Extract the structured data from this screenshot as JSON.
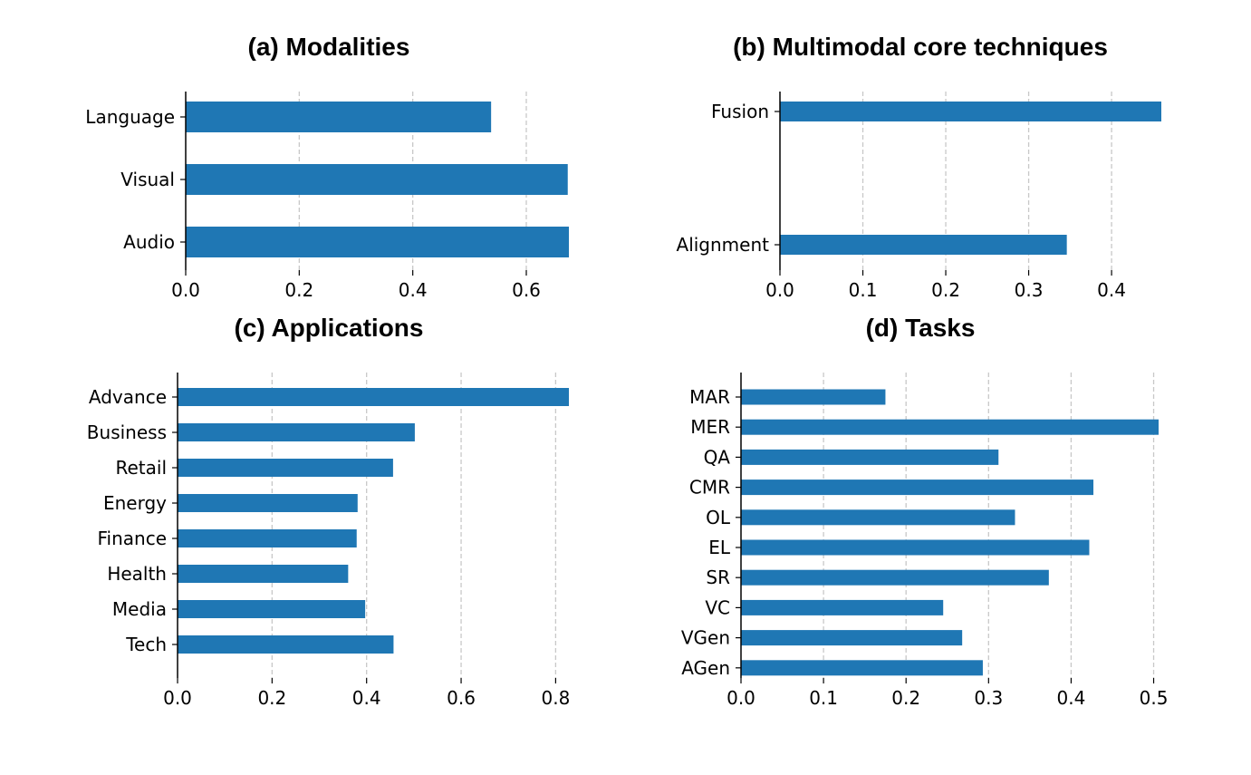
{
  "colors": {
    "bar": "#1f77b4",
    "grid": "#c8c8c8",
    "axis": "#000000"
  },
  "chart_data": [
    {
      "type": "bar",
      "orientation": "horizontal",
      "title": "(a) Modalities",
      "categories": [
        "Language",
        "Visual",
        "Audio"
      ],
      "values": [
        0.538,
        0.673,
        0.675
      ],
      "xlim": [
        0,
        0.675
      ],
      "xticks": [
        0.0,
        0.2,
        0.4,
        0.6
      ],
      "xtick_labels": [
        "0.0",
        "0.2",
        "0.4",
        "0.6"
      ],
      "grid": "x-dashed"
    },
    {
      "type": "bar",
      "orientation": "horizontal",
      "title": "(b) Multimodal core techniques",
      "categories": [
        "Fusion",
        "Alignment"
      ],
      "values": [
        0.46,
        0.346
      ],
      "xlim": [
        0,
        0.46
      ],
      "xticks": [
        0.0,
        0.1,
        0.2,
        0.3,
        0.4
      ],
      "xtick_labels": [
        "0.0",
        "0.1",
        "0.2",
        "0.3",
        "0.4"
      ],
      "grid": "x-dashed"
    },
    {
      "type": "bar",
      "orientation": "horizontal",
      "title": "(c) Applications",
      "categories": [
        "Advance",
        "Business",
        "Retail",
        "Energy",
        "Finance",
        "Health",
        "Media",
        "Tech"
      ],
      "values": [
        0.828,
        0.502,
        0.456,
        0.381,
        0.379,
        0.361,
        0.397,
        0.457
      ],
      "xlim": [
        0,
        0.828
      ],
      "xticks": [
        0.0,
        0.2,
        0.4,
        0.6,
        0.8
      ],
      "xtick_labels": [
        "0.0",
        "0.2",
        "0.4",
        "0.6",
        "0.8"
      ],
      "grid": "x-dashed"
    },
    {
      "type": "bar",
      "orientation": "horizontal",
      "title": "(d) Tasks",
      "categories": [
        "MAR",
        "MER",
        "QA",
        "CMR",
        "OL",
        "EL",
        "SR",
        "VC",
        "VGen",
        "AGen"
      ],
      "values": [
        0.175,
        0.506,
        0.312,
        0.427,
        0.332,
        0.422,
        0.373,
        0.245,
        0.268,
        0.293
      ],
      "xlim": [
        0,
        0.506
      ],
      "xticks": [
        0.0,
        0.1,
        0.2,
        0.3,
        0.4,
        0.5
      ],
      "xtick_labels": [
        "0.0",
        "0.1",
        "0.2",
        "0.3",
        "0.4",
        "0.5"
      ],
      "grid": "x-dashed"
    }
  ]
}
